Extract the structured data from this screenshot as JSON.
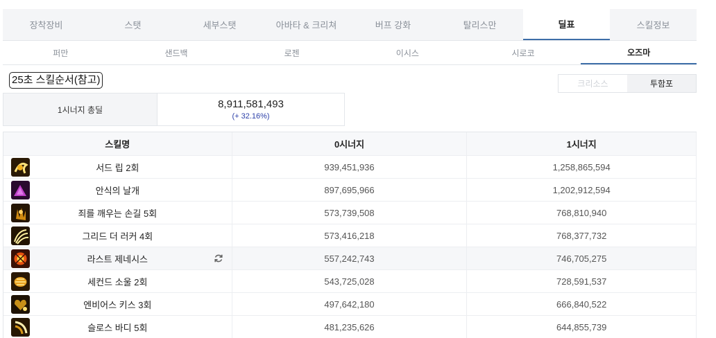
{
  "top_tabs": [
    {
      "label": "장착장비",
      "active": false
    },
    {
      "label": "스탯",
      "active": false
    },
    {
      "label": "세부스탯",
      "active": false
    },
    {
      "label": "아바타 & 크리쳐",
      "active": false
    },
    {
      "label": "버프 강화",
      "active": false
    },
    {
      "label": "탈리스만",
      "active": false
    },
    {
      "label": "딜표",
      "active": true
    },
    {
      "label": "스킬정보",
      "active": false
    }
  ],
  "sub_tabs": [
    {
      "label": "퍼만",
      "active": false
    },
    {
      "label": "샌드백",
      "active": false
    },
    {
      "label": "로젠",
      "active": false
    },
    {
      "label": "이시스",
      "active": false
    },
    {
      "label": "시로코",
      "active": false
    },
    {
      "label": "오즈마",
      "active": true
    }
  ],
  "section_title": "25초 스킬순서(참고)",
  "toggle": [
    {
      "label": "크리소스",
      "active": false
    },
    {
      "label": "투함포",
      "active": true
    }
  ],
  "summary": {
    "label": "1시너지 총딜",
    "value": "8,911,581,493",
    "percent": "(+ 32.16%)"
  },
  "table": {
    "headers": [
      "스킬명",
      "0시너지",
      "1시너지"
    ],
    "rows": [
      {
        "name": "서드 립 2회",
        "syn0": "939,451,936",
        "syn1": "1,258,865,594",
        "icon": "skill-icon-gold-swirl",
        "highlight": false,
        "refresh": false
      },
      {
        "name": "안식의 날개",
        "syn0": "897,695,966",
        "syn1": "1,202,912,594",
        "icon": "skill-icon-purple-wings",
        "highlight": false,
        "refresh": false
      },
      {
        "name": "죄를 깨우는 손길 5회",
        "syn0": "573,739,508",
        "syn1": "768,810,940",
        "icon": "skill-icon-gold-hand",
        "highlight": false,
        "refresh": false
      },
      {
        "name": "그리드 더 러커 4회",
        "syn0": "573,416,218",
        "syn1": "768,377,732",
        "icon": "skill-icon-gold-claw",
        "highlight": false,
        "refresh": false
      },
      {
        "name": "라스트 제네시스",
        "syn0": "557,242,743",
        "syn1": "746,705,275",
        "icon": "skill-icon-red-burst",
        "highlight": true,
        "refresh": true
      },
      {
        "name": "세컨드 소울 2회",
        "syn0": "543,725,028",
        "syn1": "728,591,537",
        "icon": "skill-icon-gold-soul",
        "highlight": false,
        "refresh": false
      },
      {
        "name": "엔비어스 키스 3회",
        "syn0": "497,642,180",
        "syn1": "666,840,522",
        "icon": "skill-icon-gold-heart",
        "highlight": false,
        "refresh": false
      },
      {
        "name": "슬로스 바디 5회",
        "syn0": "481,235,626",
        "syn1": "644,855,739",
        "icon": "skill-icon-gold-body",
        "highlight": false,
        "refresh": false
      }
    ]
  },
  "colors": {
    "accent": "#3e6ea8",
    "percent": "#2b3fa8"
  }
}
